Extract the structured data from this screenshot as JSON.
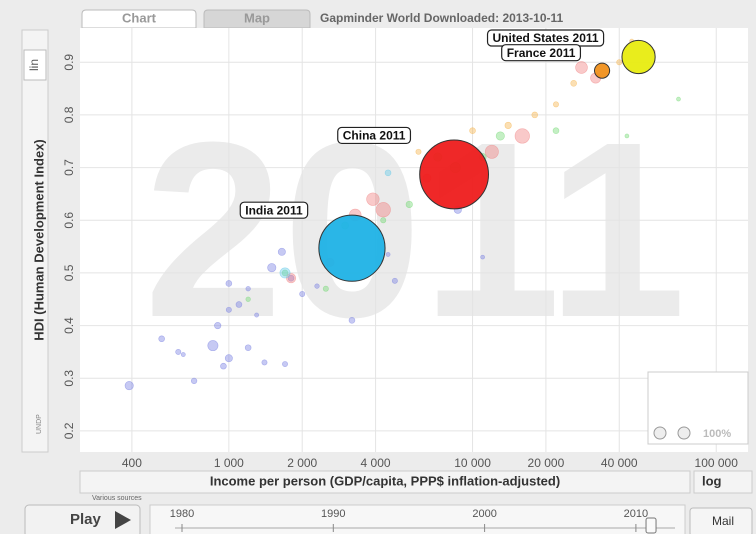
{
  "tabs": [
    "Chart",
    "Map"
  ],
  "header": "Gapminder World Downloaded: 2013-10-11",
  "y_scale_label": "lin",
  "x_scale_label": "log",
  "y_source": "UNDP",
  "x_source": "Various sources",
  "zoom_label": "100%",
  "play_label": "Play",
  "mail_label": "Mail",
  "timeline": {
    "ticks": [
      1980,
      1990,
      2000,
      2010
    ],
    "value": 2011
  },
  "chart_data": {
    "type": "scatter",
    "year_label": "2011",
    "xlabel": "Income per person (GDP/capita, PPP$ inflation-adjusted)",
    "ylabel": "HDI (Human Development Index)",
    "xscale": "log",
    "grid": true,
    "xlim": [
      245,
      135000
    ],
    "ylim": [
      0.16,
      0.965
    ],
    "xticks": [
      400,
      {
        "value": 1000,
        "label": "1 000"
      },
      {
        "value": 2000,
        "label": "2 000"
      },
      {
        "value": 4000,
        "label": "4 000"
      },
      {
        "value": 10000,
        "label": "10 000"
      },
      {
        "value": 20000,
        "label": "20 000"
      },
      {
        "value": 40000,
        "label": "40 000"
      },
      {
        "value": 100000,
        "label": "100 000"
      }
    ],
    "yticks": [
      0.2,
      0.3,
      0.4,
      0.5,
      0.6,
      0.7,
      0.8,
      0.9
    ],
    "labels": [
      "India 2011",
      "China 2011",
      "United States 2011",
      "France 2011",
      null,
      null,
      null,
      null,
      null,
      null,
      null,
      null,
      null,
      null,
      null,
      null,
      null,
      null,
      null,
      null,
      null,
      null,
      null,
      null,
      null,
      null,
      null,
      null,
      null,
      null,
      null,
      null,
      null,
      null,
      null,
      null,
      null,
      null,
      null,
      null,
      null,
      null,
      null,
      null,
      null,
      null,
      null,
      null,
      null,
      null,
      null,
      null,
      null,
      null,
      null,
      null,
      null,
      null,
      null,
      null,
      null,
      null,
      null,
      null,
      null,
      null
    ],
    "x": [
      3200,
      8400,
      48000,
      34000,
      390,
      530,
      620,
      720,
      650,
      860,
      950,
      1000,
      1200,
      1400,
      1700,
      900,
      1000,
      1100,
      1300,
      1500,
      1800,
      2000,
      1650,
      2300,
      3200,
      4800,
      4500,
      8700,
      11000,
      1000,
      1200,
      1800,
      2600,
      3300,
      3900,
      4300,
      6500,
      12000,
      16000,
      28000,
      32000,
      1200,
      1700,
      2500,
      3000,
      4300,
      5500,
      7200,
      8500,
      11000,
      13000,
      22000,
      70000,
      43000,
      6000,
      10000,
      14000,
      18000,
      22000,
      26000,
      40000,
      45000,
      55000,
      1700,
      4500
    ],
    "y": [
      0.547,
      0.687,
      0.91,
      0.884,
      0.286,
      0.375,
      0.35,
      0.295,
      0.345,
      0.362,
      0.323,
      0.338,
      0.358,
      0.33,
      0.327,
      0.4,
      0.43,
      0.44,
      0.42,
      0.51,
      0.49,
      0.46,
      0.54,
      0.475,
      0.41,
      0.485,
      0.535,
      0.62,
      0.53,
      0.48,
      0.47,
      0.49,
      0.52,
      0.61,
      0.64,
      0.62,
      0.68,
      0.73,
      0.76,
      0.89,
      0.87,
      0.45,
      0.5,
      0.47,
      0.59,
      0.6,
      0.63,
      0.72,
      0.7,
      0.72,
      0.76,
      0.77,
      0.83,
      0.76,
      0.73,
      0.77,
      0.78,
      0.8,
      0.82,
      0.86,
      0.9,
      0.94,
      0.92,
      0.5,
      0.69
    ],
    "sizes": [
      1240,
      1340,
      312,
      65,
      20,
      10,
      8,
      9,
      5,
      30,
      10,
      15,
      10,
      8,
      8,
      12,
      8,
      10,
      5,
      20,
      10,
      8,
      15,
      6,
      10,
      8,
      5,
      16,
      3,
      10,
      6,
      25,
      20,
      40,
      45,
      60,
      20,
      50,
      60,
      40,
      30,
      6,
      10,
      8,
      15,
      8,
      12,
      20,
      30,
      15,
      20,
      10,
      2,
      2,
      8,
      10,
      12,
      10,
      8,
      10,
      8,
      5,
      6,
      30,
      10
    ],
    "colors": [
      "#1fb2e6",
      "#ee1c1c",
      "#e8ec10",
      "#f0901c",
      "#7078e0",
      "#7078e0",
      "#7078e0",
      "#7078e0",
      "#7078e0",
      "#7078e0",
      "#7078e0",
      "#7078e0",
      "#7078e0",
      "#7078e0",
      "#7078e0",
      "#7078e0",
      "#7078e0",
      "#7078e0",
      "#7078e0",
      "#7078e0",
      "#7078e0",
      "#7078e0",
      "#7078e0",
      "#7078e0",
      "#7078e0",
      "#7078e0",
      "#7078e0",
      "#7078e0",
      "#7078e0",
      "#7078e0",
      "#7078e0",
      "#f07878",
      "#f07878",
      "#f07878",
      "#f07878",
      "#f07878",
      "#f07878",
      "#f07878",
      "#f07878",
      "#f07878",
      "#f07878",
      "#6cd86c",
      "#6cd86c",
      "#6cd86c",
      "#6cd86c",
      "#6cd86c",
      "#6cd86c",
      "#6cd86c",
      "#6cd86c",
      "#6cd86c",
      "#6cd86c",
      "#6cd86c",
      "#6cd86c",
      "#6cd86c",
      "#f5b040",
      "#f5b040",
      "#f5b040",
      "#f5b040",
      "#f5b040",
      "#f5b040",
      "#f5b040",
      "#f5b040",
      "#f5b040",
      "#5cc8e8",
      "#5cc8e8"
    ]
  }
}
